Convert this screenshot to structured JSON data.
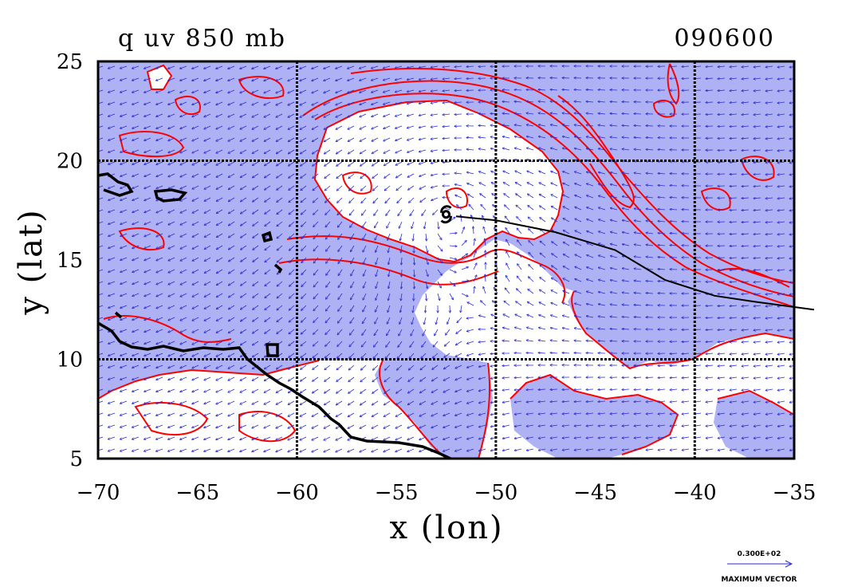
{
  "title_left": "q uv 850 mb",
  "title_right": "090600",
  "colors": {
    "shade": "#aeb2f5",
    "contour": "#ff0000",
    "vector": "#2b2bd0",
    "coast": "#000000",
    "grid": "#000000",
    "track": "#000000"
  },
  "chart_data": {
    "type": "map",
    "xlabel": "x (lon)",
    "ylabel": "y (lat)",
    "xlim": [
      -70,
      -35
    ],
    "ylim": [
      5,
      25
    ],
    "x_ticks": [
      -70,
      -65,
      -60,
      -55,
      -50,
      -45,
      -40,
      -35
    ],
    "x_tick_labels": [
      "−70",
      "−65",
      "−60",
      "−55",
      "−50",
      "−45",
      "−40",
      "−35"
    ],
    "y_ticks": [
      5,
      10,
      15,
      20,
      25
    ],
    "y_tick_labels": [
      "5",
      "10",
      "15",
      "20",
      "25"
    ],
    "gridlines_lon": [
      -60,
      -50,
      -40
    ],
    "gridlines_lat": [
      10,
      20
    ],
    "grid": true,
    "storm_center": {
      "lon": -52.5,
      "lat": 17.3,
      "symbol": "tropical-storm-icon"
    },
    "track": [
      {
        "lon": -52.0,
        "lat": 17.2
      },
      {
        "lon": -50.0,
        "lat": 17.0
      },
      {
        "lon": -47.0,
        "lat": 16.4
      },
      {
        "lon": -44.0,
        "lat": 15.5
      },
      {
        "lon": -41.5,
        "lat": 14.0
      },
      {
        "lon": -39.0,
        "lat": 13.2
      },
      {
        "lon": -37.0,
        "lat": 12.9
      },
      {
        "lon": -34.0,
        "lat": 12.5
      }
    ],
    "legend": {
      "value": "0.300E+02",
      "label": "MAXIMUM VECTOR",
      "placement": "bottom-right"
    }
  }
}
